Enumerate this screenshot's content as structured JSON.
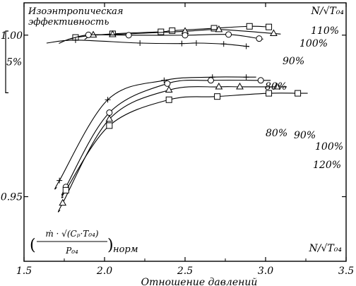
{
  "chart_data": [
    {
      "id": "efficiency",
      "type": "line",
      "title_lines": [
        "Изоэнтропическая",
        "эффективность"
      ],
      "speed_param": "N/√T₀₄",
      "scale_bar_label": "5%",
      "series": [
        {
          "name": "110%",
          "marker": "square",
          "x": [
            1.82,
            2.05,
            2.35,
            2.42,
            2.68,
            2.9,
            3.02
          ],
          "y": [
            10.1,
            10.66,
            10.97,
            11.15,
            11.52,
            11.82,
            11.72
          ]
        },
        {
          "name": "100%",
          "marker": "triangle",
          "x": [
            1.93,
            2.05,
            2.5,
            2.71,
            3.05
          ],
          "y": [
            10.48,
            10.55,
            11.05,
            11.32,
            10.71
          ]
        },
        {
          "name": "90%",
          "marker": "circle",
          "x": [
            1.9,
            2.15,
            2.5,
            2.77,
            2.96
          ],
          "y": [
            10.5,
            10.45,
            10.45,
            10.56,
            9.93
          ]
        },
        {
          "name": "80%",
          "marker": "plus",
          "x": [
            1.82,
            2.22,
            2.48,
            2.57,
            2.74,
            2.88
          ],
          "y": [
            9.69,
            9.24,
            9.17,
            9.24,
            9.1,
            8.75
          ]
        }
      ]
    },
    {
      "id": "flow",
      "type": "line",
      "ylabel_lines": [
        "ṁ · √(Cₚ·T₀₄)",
        "P₀₄"
      ],
      "ylabel_suffix": "норм",
      "xlabel": "Отношение давлений",
      "speed_param": "N/√T₀₄",
      "xlim": [
        1.5,
        3.5
      ],
      "ylim": [
        0.93,
        1.01
      ],
      "xticks": [
        1.5,
        2.0,
        2.5,
        3.0,
        3.5
      ],
      "xtick_labels": [
        "1.5",
        "2.0",
        "2.5",
        "3.0",
        "3.5"
      ],
      "yticks": [
        0.95,
        1.0
      ],
      "ytick_labels": [
        "0.95",
        "1.00"
      ],
      "series": [
        {
          "name": "80%",
          "marker": "plus",
          "x": [
            1.72,
            2.02,
            2.37,
            2.67,
            2.88
          ],
          "y": [
            0.955,
            0.98,
            0.986,
            0.987,
            0.987
          ]
        },
        {
          "name": "90%",
          "marker": "circle",
          "x": [
            1.76,
            2.03,
            2.39,
            2.66,
            2.97
          ],
          "y": [
            0.953,
            0.976,
            0.985,
            0.986,
            0.986
          ]
        },
        {
          "name": "100%",
          "marker": "triangle",
          "x": [
            1.74,
            2.03,
            2.4,
            2.71,
            2.84,
            3.07
          ],
          "y": [
            0.948,
            0.974,
            0.983,
            0.984,
            0.984,
            0.984
          ]
        },
        {
          "name": "120%",
          "marker": "square",
          "x": [
            1.76,
            2.03,
            2.4,
            2.7,
            3.02,
            3.2
          ],
          "y": [
            0.952,
            0.972,
            0.98,
            0.981,
            0.982,
            0.982
          ]
        }
      ]
    }
  ]
}
